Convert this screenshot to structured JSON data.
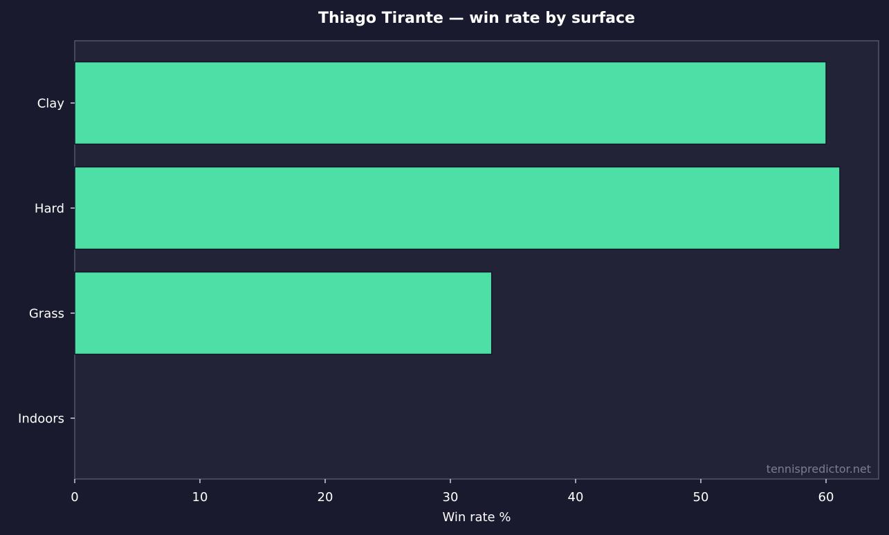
{
  "colors": {
    "background": "#1a1a2e",
    "plot_background": "#232337",
    "bar_fill": "#4ddfa6",
    "bar_edge": "#15152a",
    "axis": "#55556a",
    "text": "#ffffff",
    "watermark": "#7d7d8f"
  },
  "watermark": "tennispredictor.net",
  "chart_data": {
    "type": "bar",
    "orientation": "horizontal",
    "title": "Thiago Tirante — win rate by surface",
    "xlabel": "Win rate %",
    "ylabel": "",
    "categories": [
      "Clay",
      "Hard",
      "Grass",
      "Indoors"
    ],
    "values": [
      60.0,
      61.1,
      33.3,
      0
    ],
    "xlim": [
      0,
      64.2
    ],
    "xticks": [
      0,
      10,
      20,
      30,
      40,
      50,
      60
    ],
    "grid": false,
    "legend": "none"
  }
}
